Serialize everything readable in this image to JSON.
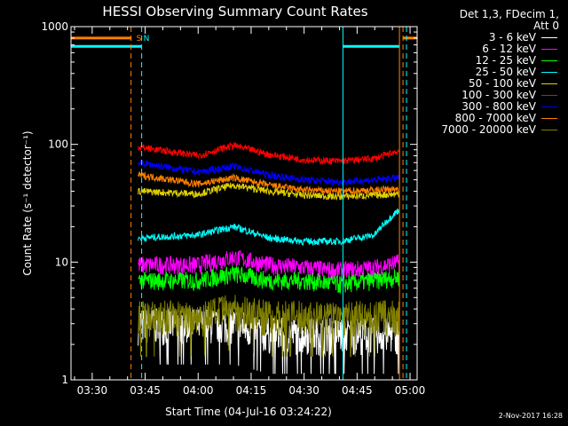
{
  "chart_data": {
    "type": "line",
    "title": "HESSI Observing Summary Count Rates",
    "xlabel": "Start Time (04-Jul-16 03:24:22)",
    "ylabel": "Count Rate (s⁻¹ detector⁻¹)",
    "yscale": "log",
    "ylim": [
      1,
      1000
    ],
    "xlim": [
      "03:24",
      "05:02"
    ],
    "x_ticks": [
      "03:30",
      "03:45",
      "04:00",
      "04:15",
      "04:30",
      "04:45",
      "05:00"
    ],
    "y_ticks": [
      "1",
      "10",
      "100",
      "1000"
    ],
    "legend_header": [
      "Det 1,3, FDecim 1,",
      "Att 0"
    ],
    "legend_placement": "right-outside",
    "data_span": [
      "03:43",
      "04:57"
    ],
    "series": [
      {
        "name": "3 - 6 keV",
        "color": "#ffffff",
        "x": [
          "03:43",
          "04:00",
          "04:10",
          "04:20",
          "04:30",
          "04:40",
          "04:50",
          "04:57"
        ],
        "values": [
          3,
          3,
          3,
          2.5,
          2.5,
          2.5,
          2.5,
          2.5
        ]
      },
      {
        "name": "6 - 12 keV",
        "color": "#ff00ff",
        "x": [
          "03:43",
          "04:00",
          "04:10",
          "04:20",
          "04:30",
          "04:40",
          "04:50",
          "04:57"
        ],
        "values": [
          9.5,
          9.5,
          11,
          9.5,
          9,
          8.5,
          9,
          10
        ]
      },
      {
        "name": "12 - 25 keV",
        "color": "#00ff00",
        "x": [
          "03:43",
          "04:00",
          "04:10",
          "04:20",
          "04:30",
          "04:40",
          "04:50",
          "04:57"
        ],
        "values": [
          7,
          7,
          8,
          7,
          7,
          6.5,
          7,
          7.5
        ]
      },
      {
        "name": "25 - 50 keV",
        "color": "#00ffff",
        "x": [
          "03:43",
          "04:00",
          "04:10",
          "04:20",
          "04:30",
          "04:40",
          "04:50",
          "04:57"
        ],
        "values": [
          16,
          17,
          20,
          16,
          15,
          15,
          17,
          28
        ]
      },
      {
        "name": "50 - 100 keV",
        "color": "#e0d000",
        "x": [
          "03:43",
          "04:00",
          "04:10",
          "04:20",
          "04:30",
          "04:40",
          "04:50",
          "04:57"
        ],
        "values": [
          40,
          38,
          45,
          40,
          37,
          36,
          37,
          38
        ]
      },
      {
        "name": "100 - 300 keV",
        "color": "#ff0000",
        "x": [
          "03:43",
          "04:00",
          "04:10",
          "04:20",
          "04:30",
          "04:40",
          "04:50",
          "04:57"
        ],
        "values": [
          95,
          80,
          98,
          82,
          74,
          72,
          76,
          88
        ]
      },
      {
        "name": "300 - 800 keV",
        "color": "#0000ff",
        "x": [
          "03:43",
          "04:00",
          "04:10",
          "04:20",
          "04:30",
          "04:40",
          "04:50",
          "04:57"
        ],
        "values": [
          70,
          58,
          65,
          55,
          50,
          48,
          50,
          52
        ]
      },
      {
        "name": "800 - 7000 keV",
        "color": "#ff8000",
        "x": [
          "03:43",
          "04:00",
          "04:10",
          "04:20",
          "04:30",
          "04:40",
          "04:50",
          "04:57"
        ],
        "values": [
          55,
          46,
          52,
          45,
          41,
          40,
          41,
          42
        ]
      },
      {
        "name": "7000 - 20000 keV",
        "color": "#808000",
        "x": [
          "03:43",
          "04:00",
          "04:10",
          "04:20",
          "04:30",
          "04:40",
          "04:50",
          "04:57"
        ],
        "values": [
          3.5,
          3.5,
          4,
          3.5,
          3.5,
          3.5,
          3.5,
          3.5
        ]
      }
    ],
    "annotations": [
      {
        "text": "S",
        "color": "#ff8000",
        "x": "03:43"
      },
      {
        "text": "N",
        "color": "#00ffff",
        "x": "03:45"
      }
    ],
    "vertical_markers": [
      {
        "kind": "saa",
        "color": "#ff8000",
        "x": [
          "03:41",
          "04:58"
        ],
        "style": "dashed"
      },
      {
        "kind": "night",
        "color": "#00ffff",
        "x": [
          "03:44",
          "04:59"
        ],
        "style": "dashed"
      },
      {
        "kind": "night",
        "color": "#00ffff",
        "x": [
          "03:24",
          "04:41"
        ],
        "style": "solid"
      },
      {
        "kind": "saa",
        "color": "#ff8000",
        "x": [
          "04:57"
        ],
        "style": "solid"
      }
    ],
    "flag_bars": [
      {
        "kind": "saa",
        "color": "#ff8000",
        "x": [
          "03:24",
          "03:41"
        ],
        "level": 800
      },
      {
        "kind": "night",
        "color": "#00ffff",
        "x": [
          "03:24",
          "03:44"
        ],
        "level": 680
      },
      {
        "kind": "night",
        "color": "#00ffff",
        "x": [
          "04:41",
          "04:57"
        ],
        "level": 680
      },
      {
        "kind": "saa",
        "color": "#ff8000",
        "x": [
          "04:58",
          "05:02"
        ],
        "level": 800
      }
    ]
  },
  "footer": {
    "date_stamp": "2-Nov-2017 16:28"
  }
}
